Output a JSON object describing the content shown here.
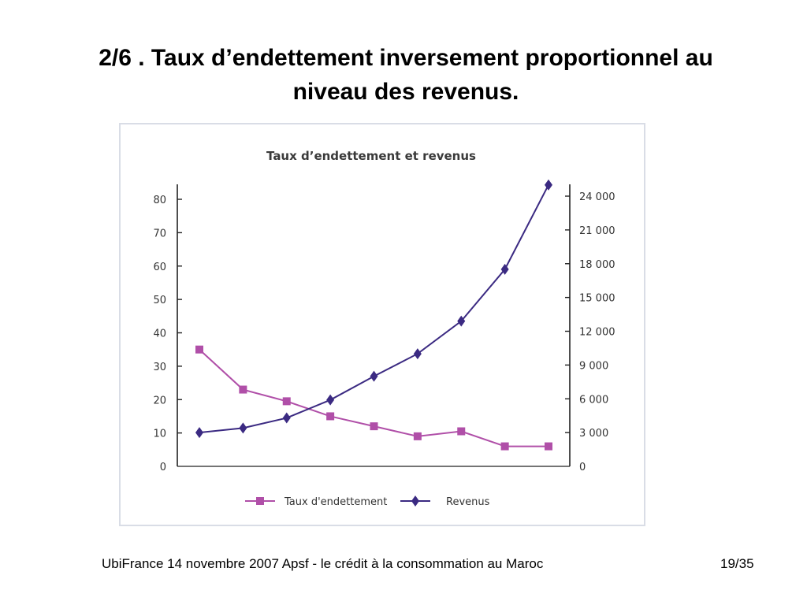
{
  "slide": {
    "title_line1": "2/6 . Taux d’endettement inversement proportionnel au",
    "title_line2": "niveau des revenus."
  },
  "footer": {
    "left": "UbiFrance 14 novembre 2007  Apsf - le crédit à la consommation au Maroc",
    "page": "19/35"
  },
  "chart_data": {
    "type": "line",
    "title": "Taux d’endettement et revenus",
    "x": [
      1,
      2,
      3,
      4,
      5,
      6,
      7,
      8,
      9
    ],
    "series": [
      {
        "name": "Taux d'endettement",
        "axis": "left",
        "color": "#b04fa8",
        "marker": "square",
        "values": [
          35,
          23,
          19.5,
          15,
          12,
          9,
          10.5,
          6,
          6
        ]
      },
      {
        "name": "Revenus",
        "axis": "right",
        "color": "#3b2a82",
        "marker": "diamond",
        "values": [
          3000,
          3400,
          4300,
          5900,
          8000,
          10000,
          12900,
          17500,
          25000
        ]
      }
    ],
    "y_left": {
      "ylim": [
        0,
        80
      ],
      "ticks": [
        {
          "v": 0,
          "label": "0"
        },
        {
          "v": 10,
          "label": "10"
        },
        {
          "v": 20,
          "label": "20"
        },
        {
          "v": 30,
          "label": "30"
        },
        {
          "v": 40,
          "label": "40"
        },
        {
          "v": 50,
          "label": "50"
        },
        {
          "v": 60,
          "label": "60"
        },
        {
          "v": 70,
          "label": "70"
        },
        {
          "v": 80,
          "label": "80"
        }
      ]
    },
    "y_right": {
      "ylim": [
        0,
        24000
      ],
      "ticks": [
        {
          "v": 0,
          "label": "0"
        },
        {
          "v": 3000,
          "label": "3 000"
        },
        {
          "v": 6000,
          "label": "6 000"
        },
        {
          "v": 9000,
          "label": "9 000"
        },
        {
          "v": 12000,
          "label": "12 000"
        },
        {
          "v": 15000,
          "label": "15 000"
        },
        {
          "v": 18000,
          "label": "18 000"
        },
        {
          "v": 21000,
          "label": "21 000"
        },
        {
          "v": 24000,
          "label": "24 000"
        }
      ]
    },
    "grid": false,
    "legend": "bottom-center"
  }
}
